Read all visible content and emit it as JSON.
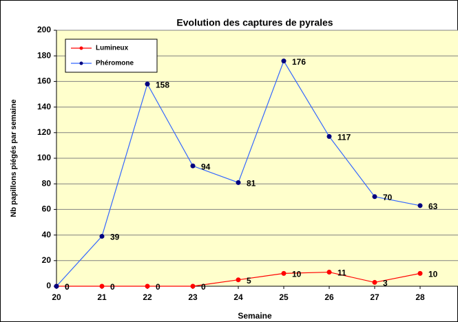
{
  "chart_data": {
    "type": "line",
    "title": "Evolution des captures de pyrales",
    "x_label": "Semaine",
    "y_label": "Nb papillons piégés par semaine",
    "x": [
      20,
      21,
      22,
      23,
      24,
      25,
      26,
      27,
      28
    ],
    "series": [
      {
        "name": "Lumineux",
        "color": "#ff0000",
        "values": [
          0,
          0,
          0,
          0,
          5,
          10,
          11,
          3,
          10
        ]
      },
      {
        "name": "Phéromone",
        "color": "#000080",
        "line_color": "#3366ff",
        "values": [
          0,
          39,
          158,
          94,
          81,
          176,
          117,
          70,
          63
        ]
      }
    ],
    "xlim": [
      20,
      29
    ],
    "xticks": [
      20,
      21,
      22,
      23,
      24,
      25,
      26,
      27,
      28,
      29
    ],
    "ylim": [
      0,
      200
    ],
    "yticks": [
      0,
      20,
      40,
      60,
      80,
      100,
      120,
      140,
      160,
      180,
      200
    ],
    "grid": true,
    "legend": "upper left",
    "plot_background": "#ffffcc"
  }
}
